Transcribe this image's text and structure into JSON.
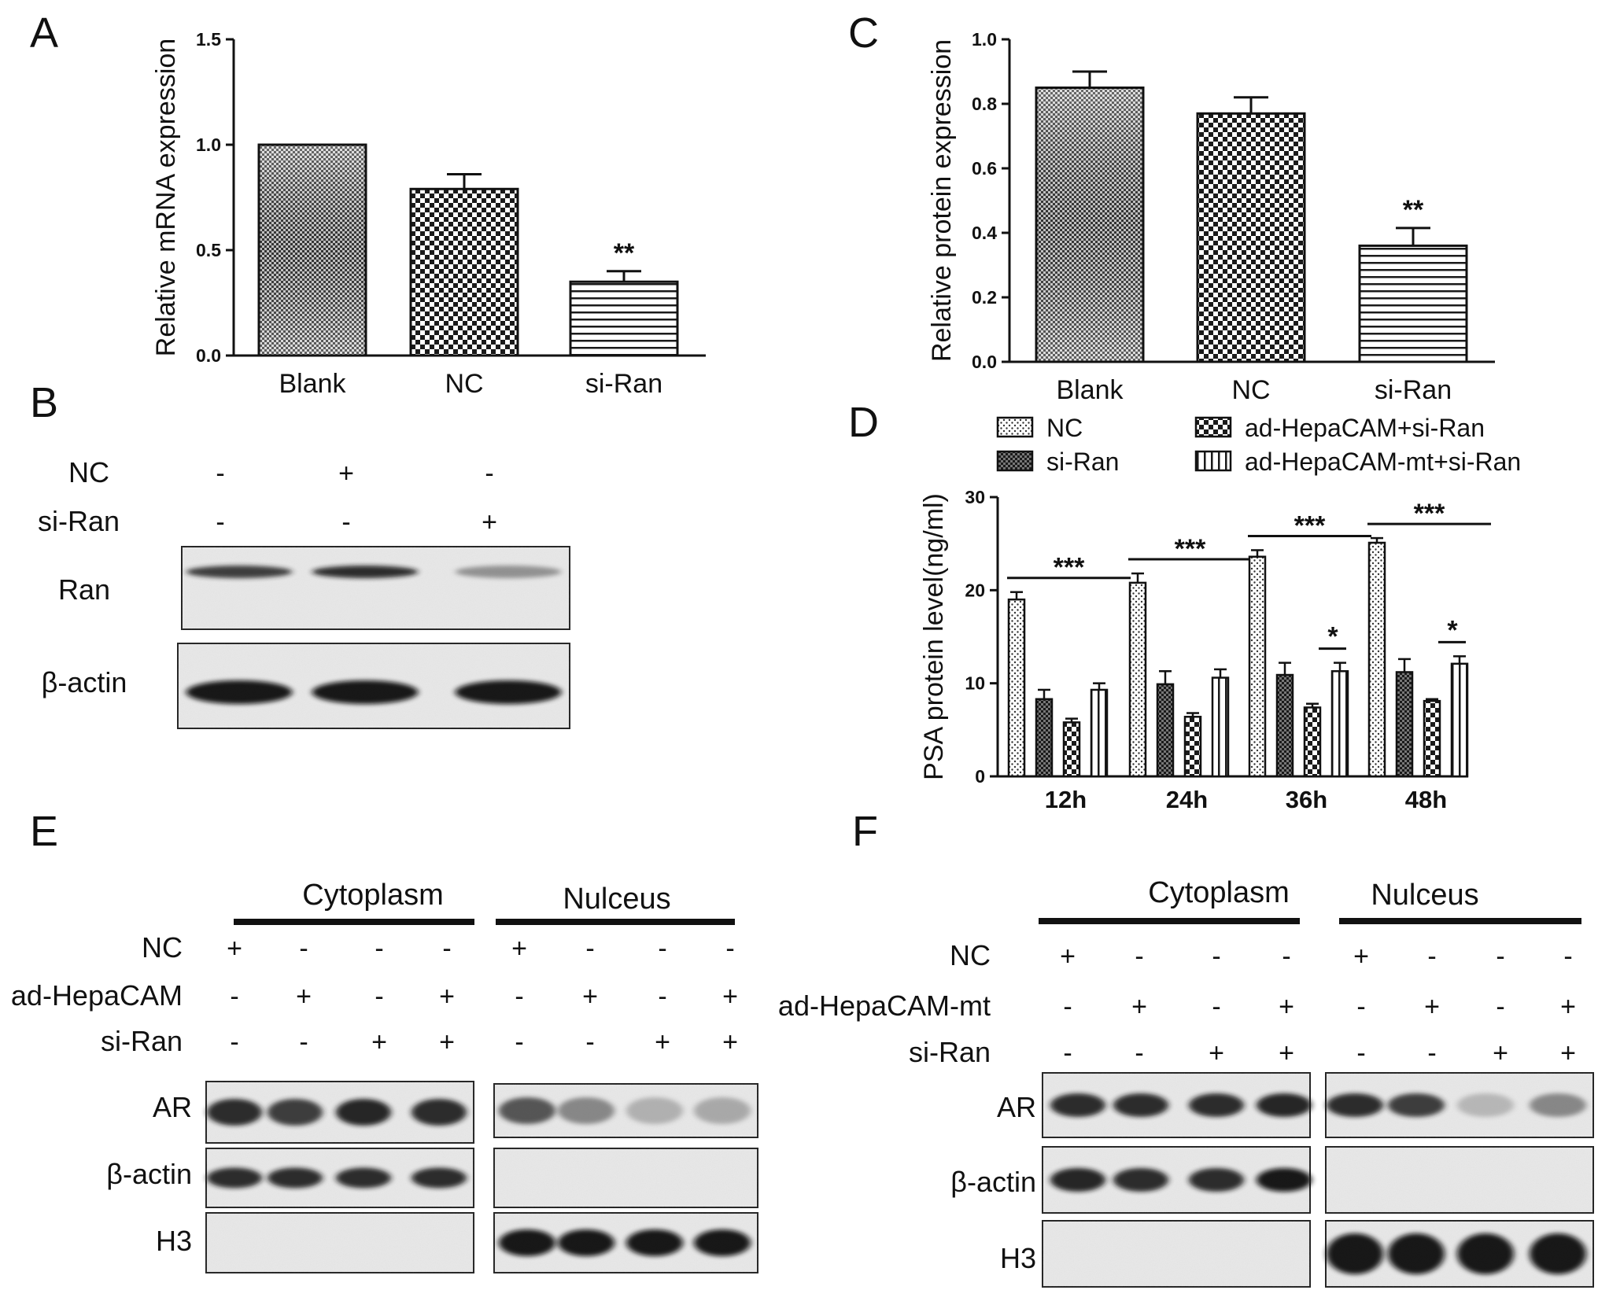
{
  "panels": {
    "A": "A",
    "B": "B",
    "C": "C",
    "D": "D",
    "E": "E",
    "F": "F"
  },
  "chart_data": [
    {
      "id": "A",
      "type": "bar",
      "categories": [
        "Blank",
        "NC",
        "si-Ran"
      ],
      "values": [
        1.0,
        0.79,
        0.35
      ],
      "errors": [
        0.0,
        0.07,
        0.05
      ],
      "significance": [
        "",
        "",
        "**"
      ],
      "ylabel": "Relative mRNA expression",
      "ylim": [
        0,
        1.5
      ],
      "yticks": [
        "0.0",
        "0.5",
        "1.0",
        "1.5"
      ],
      "fills": [
        "gradient-check",
        "check",
        "hline"
      ]
    },
    {
      "id": "C",
      "type": "bar",
      "categories": [
        "Blank",
        "NC",
        "si-Ran"
      ],
      "values": [
        0.85,
        0.77,
        0.36
      ],
      "errors": [
        0.05,
        0.05,
        0.055
      ],
      "significance": [
        "",
        "",
        "**"
      ],
      "ylabel": "Relative protein expression",
      "ylim": [
        0,
        1.0
      ],
      "yticks": [
        "0.0",
        "0.2",
        "0.4",
        "0.6",
        "0.8",
        "1.0"
      ],
      "fills": [
        "gradient-check",
        "check",
        "hline"
      ]
    },
    {
      "id": "D",
      "type": "bar",
      "categories": [
        "12h",
        "24h",
        "36h",
        "48h"
      ],
      "series": [
        {
          "name": "NC",
          "values": [
            19.0,
            20.8,
            23.6,
            25.1
          ],
          "errors": [
            0.8,
            1.0,
            0.7,
            0.5
          ],
          "fill": "dots"
        },
        {
          "name": "si-Ran",
          "values": [
            8.3,
            9.9,
            10.9,
            11.2
          ],
          "errors": [
            1.0,
            1.4,
            1.3,
            1.4
          ],
          "fill": "dark-check"
        },
        {
          "name": "ad-HepaCAM+si-Ran",
          "values": [
            5.8,
            6.4,
            7.4,
            8.1
          ],
          "errors": [
            0.4,
            0.4,
            0.4,
            0.2
          ],
          "fill": "check"
        },
        {
          "name": "ad-HepaCAM-mt+si-Ran",
          "values": [
            9.3,
            10.6,
            11.3,
            12.1
          ],
          "errors": [
            0.7,
            0.9,
            0.9,
            0.8
          ],
          "fill": "vline"
        }
      ],
      "ylabel": "PSA protein level(ng/ml)",
      "ylim": [
        0,
        30
      ],
      "yticks": [
        "0",
        "10",
        "20",
        "30"
      ],
      "legend": "top",
      "sig_long": "***",
      "sig_short": "*",
      "sig_short_groups": [
        2,
        3
      ]
    }
  ],
  "blot_B": {
    "rows": [
      {
        "label": "NC",
        "signs": [
          "-",
          "+",
          "-"
        ]
      },
      {
        "label": "si-Ran",
        "signs": [
          "-",
          "-",
          "+"
        ]
      }
    ],
    "bands": [
      {
        "label": "Ran",
        "intensity": [
          0.85,
          0.9,
          0.45
        ]
      },
      {
        "label": "β-actin",
        "intensity": [
          1.0,
          1.0,
          1.0
        ]
      }
    ]
  },
  "blot_E": {
    "sections": [
      "Cytoplasm",
      "Nulceus"
    ],
    "rows": [
      {
        "label": "NC",
        "signs": [
          "+",
          "-",
          "-",
          "-",
          "+",
          "-",
          "-",
          "-"
        ]
      },
      {
        "label": "ad-HepaCAM",
        "signs": [
          "-",
          "+",
          "-",
          "+",
          "-",
          "+",
          "-",
          "+"
        ]
      },
      {
        "label": "si-Ran",
        "signs": [
          "-",
          "-",
          "+",
          "+",
          "-",
          "-",
          "+",
          "+"
        ]
      }
    ],
    "bands": [
      {
        "label": "AR",
        "cyto": [
          0.9,
          0.85,
          0.95,
          0.9
        ],
        "nuc": [
          0.75,
          0.5,
          0.25,
          0.3
        ]
      },
      {
        "label": "β-actin",
        "cyto": [
          0.9,
          0.9,
          0.9,
          0.9
        ],
        "nuc": [
          0,
          0,
          0,
          0
        ]
      },
      {
        "label": "H3",
        "cyto": [
          0,
          0,
          0,
          0
        ],
        "nuc": [
          1.0,
          1.0,
          1.0,
          1.0
        ]
      }
    ]
  },
  "blot_F": {
    "sections": [
      "Cytoplasm",
      "Nulceus"
    ],
    "rows": [
      {
        "label": "NC",
        "signs": [
          "+",
          "-",
          "-",
          "-",
          "+",
          "-",
          "-",
          "-"
        ]
      },
      {
        "label": "ad-HepaCAM-mt",
        "signs": [
          "-",
          "+",
          "-",
          "+",
          "-",
          "+",
          "-",
          "+"
        ]
      },
      {
        "label": "si-Ran",
        "signs": [
          "-",
          "-",
          "+",
          "+",
          "-",
          "-",
          "+",
          "+"
        ]
      }
    ],
    "bands": [
      {
        "label": "AR",
        "cyto": [
          0.9,
          0.9,
          0.9,
          0.95
        ],
        "nuc": [
          0.9,
          0.85,
          0.2,
          0.5
        ]
      },
      {
        "label": "β-actin",
        "cyto": [
          0.95,
          0.9,
          0.9,
          1.0
        ],
        "nuc": [
          0,
          0,
          0,
          0
        ]
      },
      {
        "label": "H3",
        "cyto": [
          0,
          0,
          0,
          0
        ],
        "nuc": [
          1.0,
          1.0,
          1.0,
          1.0
        ]
      }
    ]
  }
}
